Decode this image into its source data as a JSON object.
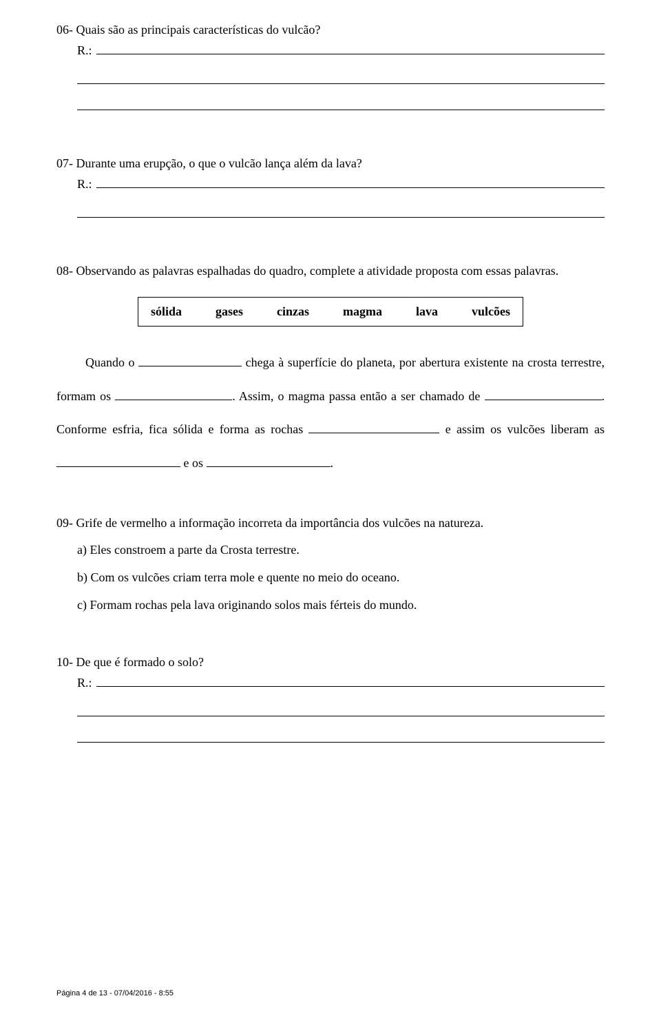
{
  "q06": {
    "prompt": "06- Quais são as principais características do vulcão?",
    "r_label": "R.:"
  },
  "q07": {
    "prompt": "07- Durante uma erupção, o que o vulcão lança além da lava?",
    "r_label": "R.:"
  },
  "q08": {
    "prompt": "08- Observando as palavras espalhadas do quadro, complete a atividade proposta com essas palavras.",
    "words": [
      "sólida",
      "gases",
      "cinzas",
      "magma",
      "lava",
      "vulcões"
    ],
    "cloze": {
      "t1": "Quando o ",
      "t2": " chega à superfície do planeta, por abertura existente na crosta terrestre, formam os ",
      "t3": ". Assim, o magma passa então a ser chamado de ",
      "t4": ". Conforme esfria, fica sólida e forma as rochas ",
      "t5": " e assim os vulcões liberam as ",
      "t6": " e os ",
      "t7": "."
    }
  },
  "q09": {
    "prompt": "09- Grife de vermelho a informação incorreta da importância dos vulcões na natureza.",
    "alts": {
      "a": "a) Eles constroem a parte da Crosta terrestre.",
      "b": "b) Com os vulcões criam terra mole e quente no meio do oceano.",
      "c": "c) Formam rochas pela lava originando solos mais férteis do mundo."
    }
  },
  "q10": {
    "prompt": "10- De que é formado o solo?",
    "r_label": "R.:"
  },
  "footer": "Página 4 de 13 - 07/04/2016 - 8:55"
}
